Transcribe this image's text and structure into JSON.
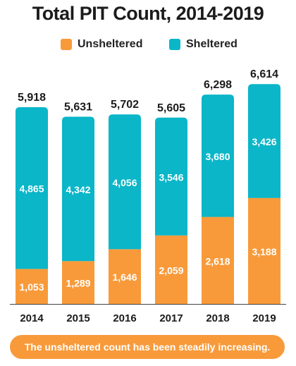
{
  "chart_data": {
    "type": "bar",
    "stacked": true,
    "title": "Total PIT Count, 2014-2019",
    "categories": [
      "2014",
      "2015",
      "2016",
      "2017",
      "2018",
      "2019"
    ],
    "series": [
      {
        "name": "Unsheltered",
        "color": "#f89a3a",
        "values": [
          1053,
          1289,
          1646,
          2059,
          2618,
          3188
        ],
        "labels": [
          "1,053",
          "1,289",
          "1,646",
          "2,059",
          "2,618",
          "3,188"
        ]
      },
      {
        "name": "Sheltered",
        "color": "#0ab6c8",
        "values": [
          4865,
          4342,
          4056,
          3546,
          3680,
          3426
        ],
        "labels": [
          "4,865",
          "4,342",
          "4,056",
          "3,546",
          "3,680",
          "3,426"
        ]
      }
    ],
    "totals": [
      5918,
      5631,
      5702,
      5605,
      6298,
      6614
    ],
    "total_labels": [
      "5,918",
      "5,631",
      "5,702",
      "5,605",
      "6,298",
      "6,614"
    ],
    "ylim": [
      0,
      7000
    ],
    "legend_position": "top-center",
    "grid": false,
    "annotation": "The unsheltered count has been steadily increasing."
  }
}
